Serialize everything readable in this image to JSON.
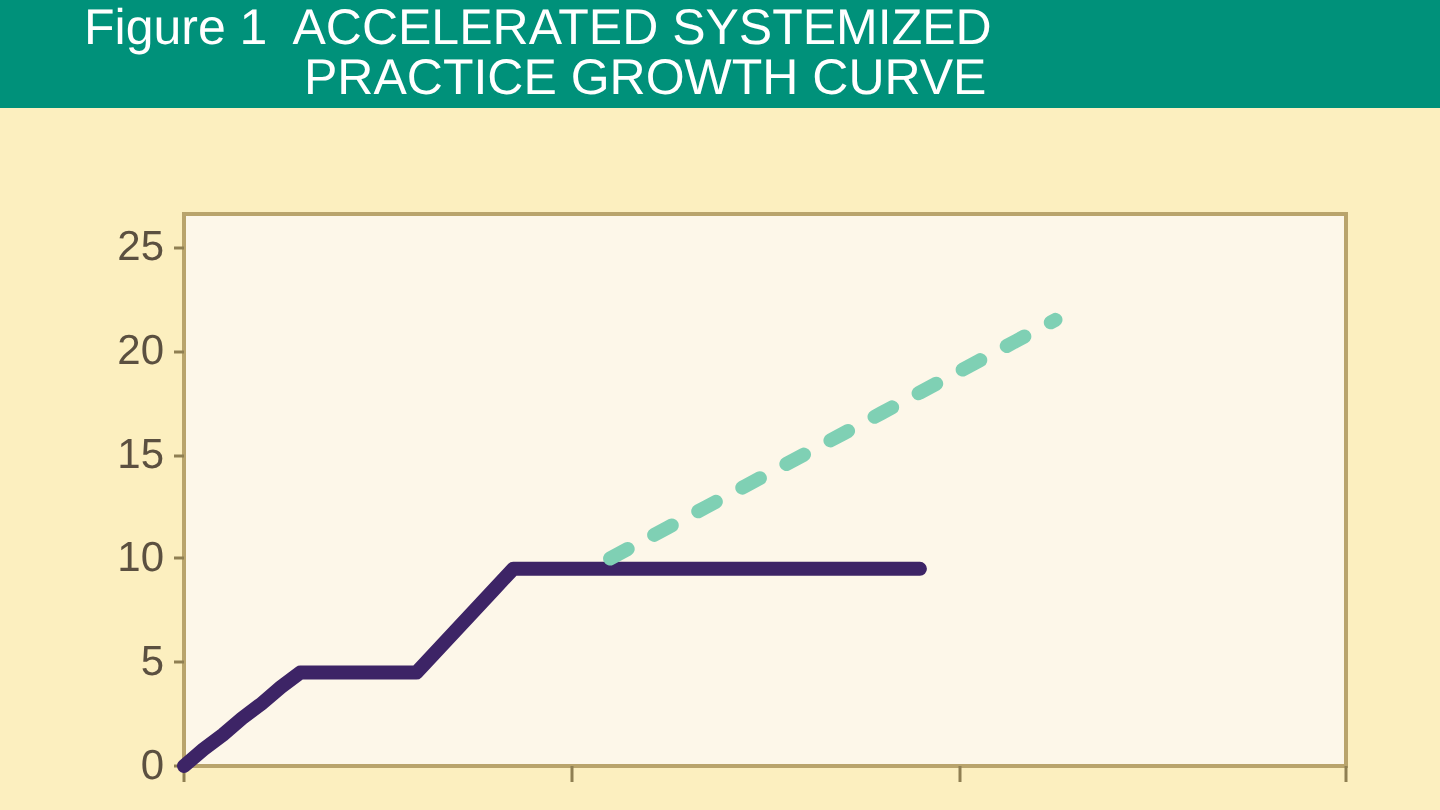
{
  "chart_data": {
    "type": "line",
    "title": "Figure 1  ACCELERATED SYSTEMIZED\nPRACTICE GROWTH CURVE",
    "categories": [
      null,
      null,
      null,
      null,
      null,
      null,
      null,
      null,
      null,
      null,
      null,
      null,
      null,
      null,
      null,
      null,
      null,
      null,
      null,
      null,
      null,
      null,
      null,
      null,
      null,
      null,
      null,
      null,
      null,
      null,
      null,
      null,
      null,
      null,
      null,
      null,
      null,
      null,
      null,
      null,
      null,
      null,
      null,
      null,
      null,
      null,
      null,
      null,
      null,
      null,
      null,
      null,
      null,
      null,
      null,
      null,
      null,
      null,
      null,
      null,
      null
    ],
    "series": [
      {
        "color": "#3d2466",
        "values": [
          0,
          0.8,
          1.5,
          2.3,
          3,
          3.8,
          4.5,
          4.5,
          4.5,
          4.5,
          4.5,
          4.5,
          4.5,
          5.5,
          6.5,
          7.5,
          8.5,
          9.5,
          9.5,
          9.5,
          9.5,
          9.5,
          9.5,
          9.5,
          9.5,
          9.5,
          9.5,
          9.5,
          9.5,
          9.5,
          9.5,
          9.5,
          9.5,
          9.5,
          9.5,
          9.5,
          9.5,
          9.5,
          9.5,
          null,
          null,
          null,
          null,
          null,
          null,
          null,
          null,
          null,
          null,
          null,
          null,
          null,
          null,
          null,
          null,
          null,
          null,
          null,
          null,
          null,
          null
        ]
      },
      {
        "color": "#7fd0b4",
        "line_style": "dashed",
        "values": [
          null,
          null,
          null,
          null,
          null,
          null,
          null,
          null,
          null,
          null,
          null,
          null,
          null,
          null,
          null,
          null,
          null,
          null,
          null,
          null,
          null,
          null,
          10,
          10.5,
          11,
          11.5,
          12,
          12.5,
          13,
          13.5,
          14,
          14.5,
          15,
          15.5,
          16,
          16.5,
          17,
          17.5,
          18,
          18.5,
          19,
          19.5,
          20,
          20.5,
          21,
          21.5,
          null,
          null,
          null,
          null,
          null,
          null,
          null,
          null,
          null,
          null,
          null,
          null,
          null,
          null,
          null
        ]
      }
    ],
    "ylim": [
      0,
      26.6
    ],
    "yticks": [
      0,
      5,
      10,
      15,
      20,
      25
    ],
    "marker": "none",
    "line_style": "solid",
    "tick_labels": "y"
  }
}
